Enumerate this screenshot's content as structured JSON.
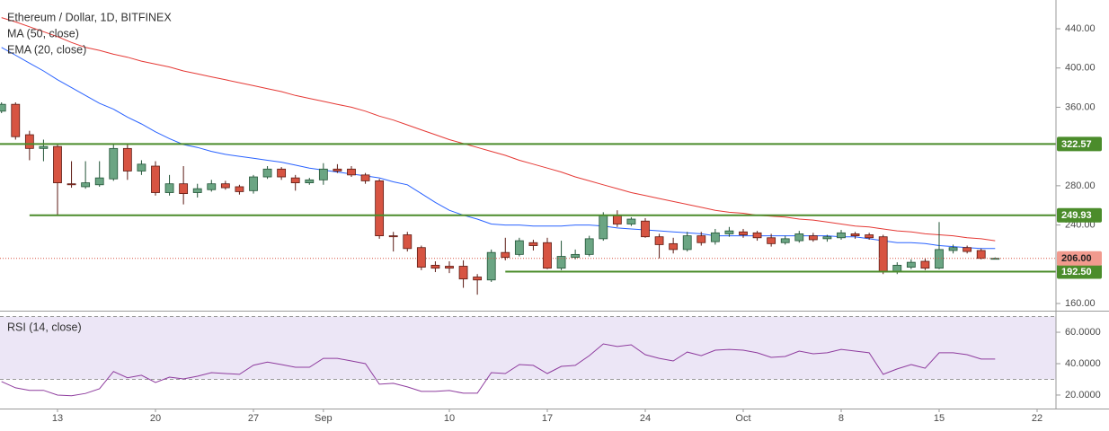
{
  "chart_data": [
    {
      "type": "candlestick",
      "title": "Ethereum / Dollar, 1D, BITFINEX",
      "open": [
        356,
        363,
        332,
        318,
        320,
        282,
        279,
        281,
        287,
        318,
        295,
        300,
        273,
        282,
        273,
        276,
        282,
        279,
        275,
        289,
        297,
        288,
        283,
        286,
        297,
        297,
        291,
        285,
        229,
        230,
        217,
        199,
        198,
        198,
        187,
        184,
        212,
        210,
        222,
        222,
        196,
        207,
        210,
        226,
        250,
        241,
        244,
        228,
        221,
        215,
        229,
        223,
        231,
        233,
        232,
        227,
        222,
        224,
        229,
        226,
        227,
        231,
        230,
        228,
        193,
        197,
        203,
        196,
        214,
        217,
        214,
        206,
        null,
        null,
        null
      ],
      "high": [
        365,
        365,
        336,
        327,
        322,
        305,
        305,
        305,
        323,
        322,
        306,
        305,
        291,
        300,
        282,
        286,
        285,
        281,
        291,
        300,
        299,
        291,
        288,
        303,
        302,
        300,
        293,
        287,
        233,
        233,
        219,
        203,
        203,
        204,
        190,
        215,
        227,
        227,
        225,
        227,
        224,
        215,
        229,
        253,
        255,
        248,
        247,
        231,
        227,
        233,
        233,
        236,
        238,
        236,
        234,
        231,
        229,
        234,
        232,
        230,
        235,
        233,
        232,
        230,
        202,
        205,
        206,
        243,
        220,
        219,
        216,
        207,
        null,
        null,
        null
      ],
      "low": [
        354,
        327,
        306,
        305,
        250,
        278,
        277,
        279,
        285,
        286,
        291,
        270,
        270,
        261,
        268,
        274,
        276,
        271,
        272,
        287,
        286,
        275,
        281,
        281,
        293,
        289,
        282,
        226,
        213,
        213,
        194,
        192,
        191,
        176,
        169,
        182,
        204,
        208,
        214,
        195,
        194,
        205,
        208,
        224,
        238,
        239,
        227,
        206,
        211,
        213,
        219,
        220,
        228,
        227,
        224,
        218,
        220,
        222,
        223,
        223,
        225,
        226,
        225,
        190,
        190,
        195,
        194,
        195,
        211,
        211,
        205,
        205,
        null,
        null,
        null
      ],
      "close": [
        363,
        330,
        318,
        320,
        283,
        281,
        283,
        288,
        318,
        295,
        302,
        273,
        282,
        272,
        277,
        282,
        278,
        274,
        289,
        297,
        289,
        283,
        286,
        297,
        295,
        291,
        285,
        229,
        228,
        216,
        197,
        196,
        196,
        185,
        184,
        212,
        207,
        224,
        219,
        196,
        208,
        210,
        226,
        250,
        241,
        246,
        228,
        220,
        215,
        229,
        222,
        232,
        234,
        230,
        227,
        221,
        226,
        231,
        225,
        228,
        232,
        229,
        227,
        193,
        199,
        202,
        196,
        215,
        217,
        213,
        206,
        206,
        null,
        null,
        null
      ],
      "up_color": "#6ba583",
      "down_color": "#d75442",
      "series": [
        {
          "name": "MA (50, close)",
          "color": "#e53935",
          "values": [
            451.4,
            447,
            442,
            437,
            432,
            426,
            421,
            418,
            414,
            411,
            407,
            404,
            401,
            397,
            394,
            391,
            388,
            385,
            382,
            379,
            376,
            372,
            369,
            366,
            363,
            360,
            356,
            351,
            347,
            342,
            337,
            332,
            327,
            323,
            319,
            315,
            311,
            306,
            302,
            298,
            294,
            289,
            285,
            281,
            277,
            273,
            270,
            267,
            264,
            261,
            258,
            255,
            253,
            252,
            250,
            249,
            248,
            246,
            245,
            243,
            241,
            239,
            238,
            236,
            234,
            233,
            231,
            230,
            229,
            227,
            226,
            224,
            null,
            null,
            null
          ]
        },
        {
          "name": "EMA (20, close)",
          "color": "#2962ff",
          "values": [
            421,
            413,
            405,
            397,
            388,
            380,
            372,
            364,
            358,
            350,
            343,
            335,
            328,
            322,
            319,
            315,
            312,
            310,
            308,
            306,
            304,
            301,
            298,
            296,
            294,
            292,
            290,
            288,
            284,
            281,
            272,
            263,
            255,
            250,
            246,
            241,
            240,
            240,
            239,
            239,
            239,
            240,
            240,
            239,
            237,
            236,
            235,
            234,
            233,
            232,
            231,
            229,
            229,
            229,
            229,
            229,
            229,
            229,
            229,
            229,
            228,
            228,
            226,
            224,
            222,
            222,
            221,
            219,
            218,
            217,
            216,
            216,
            null,
            null,
            null
          ]
        }
      ],
      "levels": [
        {
          "value": 322.57,
          "label": "322.57"
        },
        {
          "value": 249.93,
          "label": "249.93"
        },
        {
          "value": 192.5,
          "label": "192.50"
        }
      ],
      "level_color": "#4b8c2b",
      "last_price": {
        "value": 206,
        "label": "206.00"
      },
      "ylim": [
        153.6,
        469.3
      ],
      "yticks": [
        {
          "value": 160,
          "label": "160.00"
        },
        {
          "value": 240,
          "label": "240.00"
        },
        {
          "value": 280,
          "label": "280.00"
        },
        {
          "value": 360,
          "label": "360.00"
        },
        {
          "value": 400,
          "label": "400.00"
        },
        {
          "value": 440,
          "label": "440.00"
        }
      ]
    },
    {
      "type": "line",
      "title": "RSI (14, close)",
      "color": "#8e3c9e",
      "categories": [
        null,
        null,
        null,
        null,
        "13",
        null,
        null,
        null,
        null,
        null,
        null,
        "20",
        null,
        null,
        null,
        null,
        null,
        null,
        "27",
        null,
        null,
        null,
        null,
        "Sep",
        null,
        null,
        null,
        null,
        null,
        null,
        null,
        null,
        "10",
        null,
        null,
        null,
        null,
        null,
        null,
        "17",
        null,
        null,
        null,
        null,
        null,
        null,
        "24",
        null,
        null,
        null,
        null,
        null,
        null,
        "Oct",
        null,
        null,
        null,
        null,
        null,
        null,
        "8",
        null,
        null,
        null,
        null,
        null,
        null,
        "15",
        null,
        null,
        null,
        null,
        null,
        null,
        "22"
      ],
      "values": [
        28.6,
        24.6,
        23,
        23,
        20,
        19.5,
        21,
        24,
        35,
        31,
        32.6,
        28,
        31.4,
        30.3,
        32,
        34.3,
        33.7,
        33.2,
        39,
        41,
        39.4,
        37.7,
        37.7,
        43.4,
        43.4,
        41.7,
        40,
        26.9,
        27.5,
        25.2,
        22.3,
        22.3,
        22.9,
        21.2,
        21.2,
        34.3,
        33.7,
        39.4,
        38.9,
        33.7,
        38.3,
        38.9,
        45.1,
        52.6,
        50.9,
        52,
        45.7,
        43.4,
        41.7,
        47.4,
        45.1,
        48.6,
        49.1,
        48.6,
        46.9,
        44,
        44.6,
        48,
        46.3,
        46.9,
        49.1,
        48,
        46.9,
        33.2,
        36.6,
        39.4,
        37.1,
        46.9,
        46.9,
        45.7,
        42.9,
        42.9,
        null,
        null,
        null
      ],
      "bands": [
        30,
        70
      ],
      "band_color": "#9575cd",
      "ylim": [
        11.4,
        72.6
      ],
      "yticks": [
        {
          "value": 20,
          "label": "20.0000"
        },
        {
          "value": 40,
          "label": "40.0000"
        },
        {
          "value": 60,
          "label": "60.0000"
        }
      ]
    }
  ]
}
